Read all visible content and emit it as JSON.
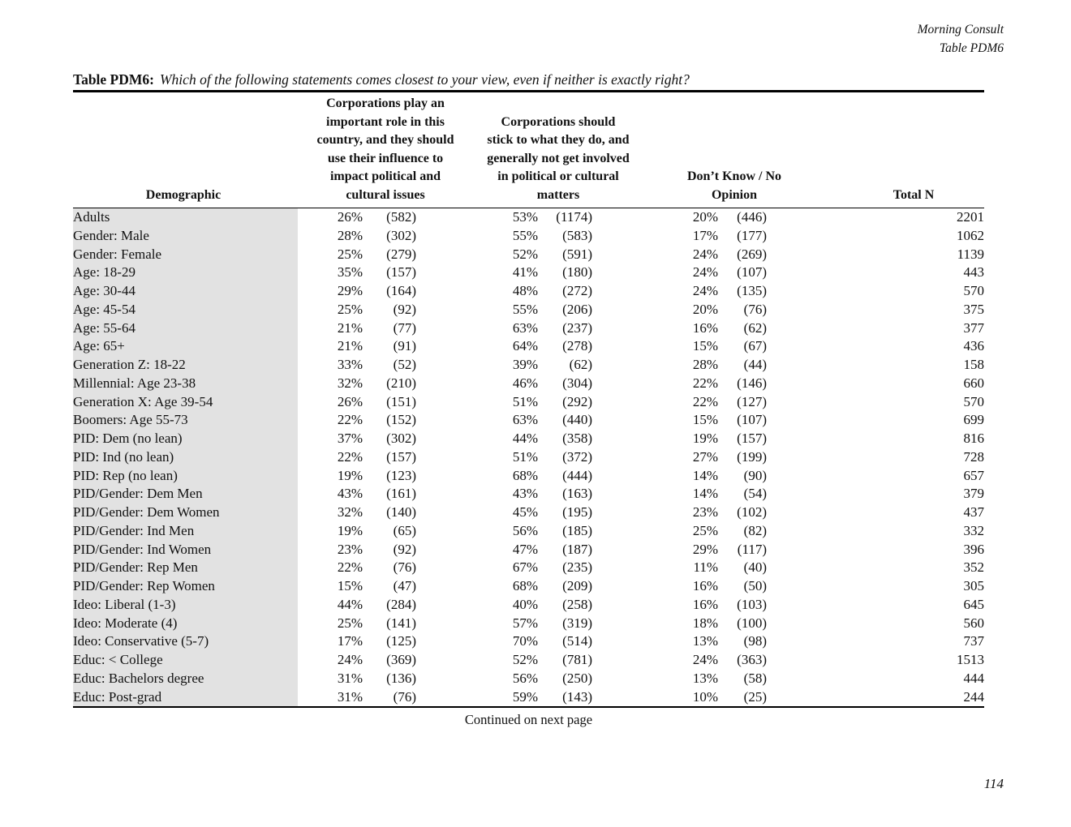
{
  "header": {
    "brand": "Morning Consult",
    "table_ref": "Table PDM6"
  },
  "title": {
    "label": "Table PDM6:",
    "question": "Which of the following statements comes closest to your view, even if neither is exactly right?"
  },
  "colors": {
    "row_band": "#e2e2e2",
    "rule": "#000000",
    "text": "#111111"
  },
  "table": {
    "columns": {
      "demographic": {
        "label": "Demographic"
      },
      "stat1": {
        "label": "Corporations play an\nimportant role in this\ncountry, and they should\nuse their influence to\nimpact political and\ncultural issues"
      },
      "stat2": {
        "label": "Corporations should\nstick to what they do, and\ngenerally not get involved\nin political or cultural\nmatters"
      },
      "dk": {
        "label": "Don’t Know / No\nOpinion"
      },
      "total": {
        "label": "Total N"
      }
    },
    "rows": [
      {
        "demographic": "Adults",
        "c1_pct": "26%",
        "c1_n": "(582)",
        "c2_pct": "53%",
        "c2_n": "(1174)",
        "c3_pct": "20%",
        "c3_n": "(446)",
        "total_n": "2201"
      },
      {
        "demographic": "Gender: Male",
        "c1_pct": "28%",
        "c1_n": "(302)",
        "c2_pct": "55%",
        "c2_n": "(583)",
        "c3_pct": "17%",
        "c3_n": "(177)",
        "total_n": "1062"
      },
      {
        "demographic": "Gender: Female",
        "c1_pct": "25%",
        "c1_n": "(279)",
        "c2_pct": "52%",
        "c2_n": "(591)",
        "c3_pct": "24%",
        "c3_n": "(269)",
        "total_n": "1139"
      },
      {
        "demographic": "Age: 18-29",
        "c1_pct": "35%",
        "c1_n": "(157)",
        "c2_pct": "41%",
        "c2_n": "(180)",
        "c3_pct": "24%",
        "c3_n": "(107)",
        "total_n": "443"
      },
      {
        "demographic": "Age: 30-44",
        "c1_pct": "29%",
        "c1_n": "(164)",
        "c2_pct": "48%",
        "c2_n": "(272)",
        "c3_pct": "24%",
        "c3_n": "(135)",
        "total_n": "570"
      },
      {
        "demographic": "Age: 45-54",
        "c1_pct": "25%",
        "c1_n": "(92)",
        "c2_pct": "55%",
        "c2_n": "(206)",
        "c3_pct": "20%",
        "c3_n": "(76)",
        "total_n": "375"
      },
      {
        "demographic": "Age: 55-64",
        "c1_pct": "21%",
        "c1_n": "(77)",
        "c2_pct": "63%",
        "c2_n": "(237)",
        "c3_pct": "16%",
        "c3_n": "(62)",
        "total_n": "377"
      },
      {
        "demographic": "Age: 65+",
        "c1_pct": "21%",
        "c1_n": "(91)",
        "c2_pct": "64%",
        "c2_n": "(278)",
        "c3_pct": "15%",
        "c3_n": "(67)",
        "total_n": "436"
      },
      {
        "demographic": "Generation Z: 18-22",
        "c1_pct": "33%",
        "c1_n": "(52)",
        "c2_pct": "39%",
        "c2_n": "(62)",
        "c3_pct": "28%",
        "c3_n": "(44)",
        "total_n": "158"
      },
      {
        "demographic": "Millennial: Age 23-38",
        "c1_pct": "32%",
        "c1_n": "(210)",
        "c2_pct": "46%",
        "c2_n": "(304)",
        "c3_pct": "22%",
        "c3_n": "(146)",
        "total_n": "660"
      },
      {
        "demographic": "Generation X: Age 39-54",
        "c1_pct": "26%",
        "c1_n": "(151)",
        "c2_pct": "51%",
        "c2_n": "(292)",
        "c3_pct": "22%",
        "c3_n": "(127)",
        "total_n": "570"
      },
      {
        "demographic": "Boomers: Age 55-73",
        "c1_pct": "22%",
        "c1_n": "(152)",
        "c2_pct": "63%",
        "c2_n": "(440)",
        "c3_pct": "15%",
        "c3_n": "(107)",
        "total_n": "699"
      },
      {
        "demographic": "PID: Dem (no lean)",
        "c1_pct": "37%",
        "c1_n": "(302)",
        "c2_pct": "44%",
        "c2_n": "(358)",
        "c3_pct": "19%",
        "c3_n": "(157)",
        "total_n": "816"
      },
      {
        "demographic": "PID: Ind (no lean)",
        "c1_pct": "22%",
        "c1_n": "(157)",
        "c2_pct": "51%",
        "c2_n": "(372)",
        "c3_pct": "27%",
        "c3_n": "(199)",
        "total_n": "728"
      },
      {
        "demographic": "PID: Rep (no lean)",
        "c1_pct": "19%",
        "c1_n": "(123)",
        "c2_pct": "68%",
        "c2_n": "(444)",
        "c3_pct": "14%",
        "c3_n": "(90)",
        "total_n": "657"
      },
      {
        "demographic": "PID/Gender: Dem Men",
        "c1_pct": "43%",
        "c1_n": "(161)",
        "c2_pct": "43%",
        "c2_n": "(163)",
        "c3_pct": "14%",
        "c3_n": "(54)",
        "total_n": "379"
      },
      {
        "demographic": "PID/Gender: Dem Women",
        "c1_pct": "32%",
        "c1_n": "(140)",
        "c2_pct": "45%",
        "c2_n": "(195)",
        "c3_pct": "23%",
        "c3_n": "(102)",
        "total_n": "437"
      },
      {
        "demographic": "PID/Gender: Ind Men",
        "c1_pct": "19%",
        "c1_n": "(65)",
        "c2_pct": "56%",
        "c2_n": "(185)",
        "c3_pct": "25%",
        "c3_n": "(82)",
        "total_n": "332"
      },
      {
        "demographic": "PID/Gender: Ind Women",
        "c1_pct": "23%",
        "c1_n": "(92)",
        "c2_pct": "47%",
        "c2_n": "(187)",
        "c3_pct": "29%",
        "c3_n": "(117)",
        "total_n": "396"
      },
      {
        "demographic": "PID/Gender: Rep Men",
        "c1_pct": "22%",
        "c1_n": "(76)",
        "c2_pct": "67%",
        "c2_n": "(235)",
        "c3_pct": "11%",
        "c3_n": "(40)",
        "total_n": "352"
      },
      {
        "demographic": "PID/Gender: Rep Women",
        "c1_pct": "15%",
        "c1_n": "(47)",
        "c2_pct": "68%",
        "c2_n": "(209)",
        "c3_pct": "16%",
        "c3_n": "(50)",
        "total_n": "305"
      },
      {
        "demographic": "Ideo: Liberal (1-3)",
        "c1_pct": "44%",
        "c1_n": "(284)",
        "c2_pct": "40%",
        "c2_n": "(258)",
        "c3_pct": "16%",
        "c3_n": "(103)",
        "total_n": "645"
      },
      {
        "demographic": "Ideo: Moderate (4)",
        "c1_pct": "25%",
        "c1_n": "(141)",
        "c2_pct": "57%",
        "c2_n": "(319)",
        "c3_pct": "18%",
        "c3_n": "(100)",
        "total_n": "560"
      },
      {
        "demographic": "Ideo: Conservative (5-7)",
        "c1_pct": "17%",
        "c1_n": "(125)",
        "c2_pct": "70%",
        "c2_n": "(514)",
        "c3_pct": "13%",
        "c3_n": "(98)",
        "total_n": "737"
      },
      {
        "demographic": "Educ: < College",
        "c1_pct": "24%",
        "c1_n": "(369)",
        "c2_pct": "52%",
        "c2_n": "(781)",
        "c3_pct": "24%",
        "c3_n": "(363)",
        "total_n": "1513"
      },
      {
        "demographic": "Educ: Bachelors degree",
        "c1_pct": "31%",
        "c1_n": "(136)",
        "c2_pct": "56%",
        "c2_n": "(250)",
        "c3_pct": "13%",
        "c3_n": "(58)",
        "total_n": "444"
      },
      {
        "demographic": "Educ: Post-grad",
        "c1_pct": "31%",
        "c1_n": "(76)",
        "c2_pct": "59%",
        "c2_n": "(143)",
        "c3_pct": "10%",
        "c3_n": "(25)",
        "total_n": "244"
      }
    ]
  },
  "footer": {
    "continued": "Continued on next page",
    "page_number": "114"
  }
}
